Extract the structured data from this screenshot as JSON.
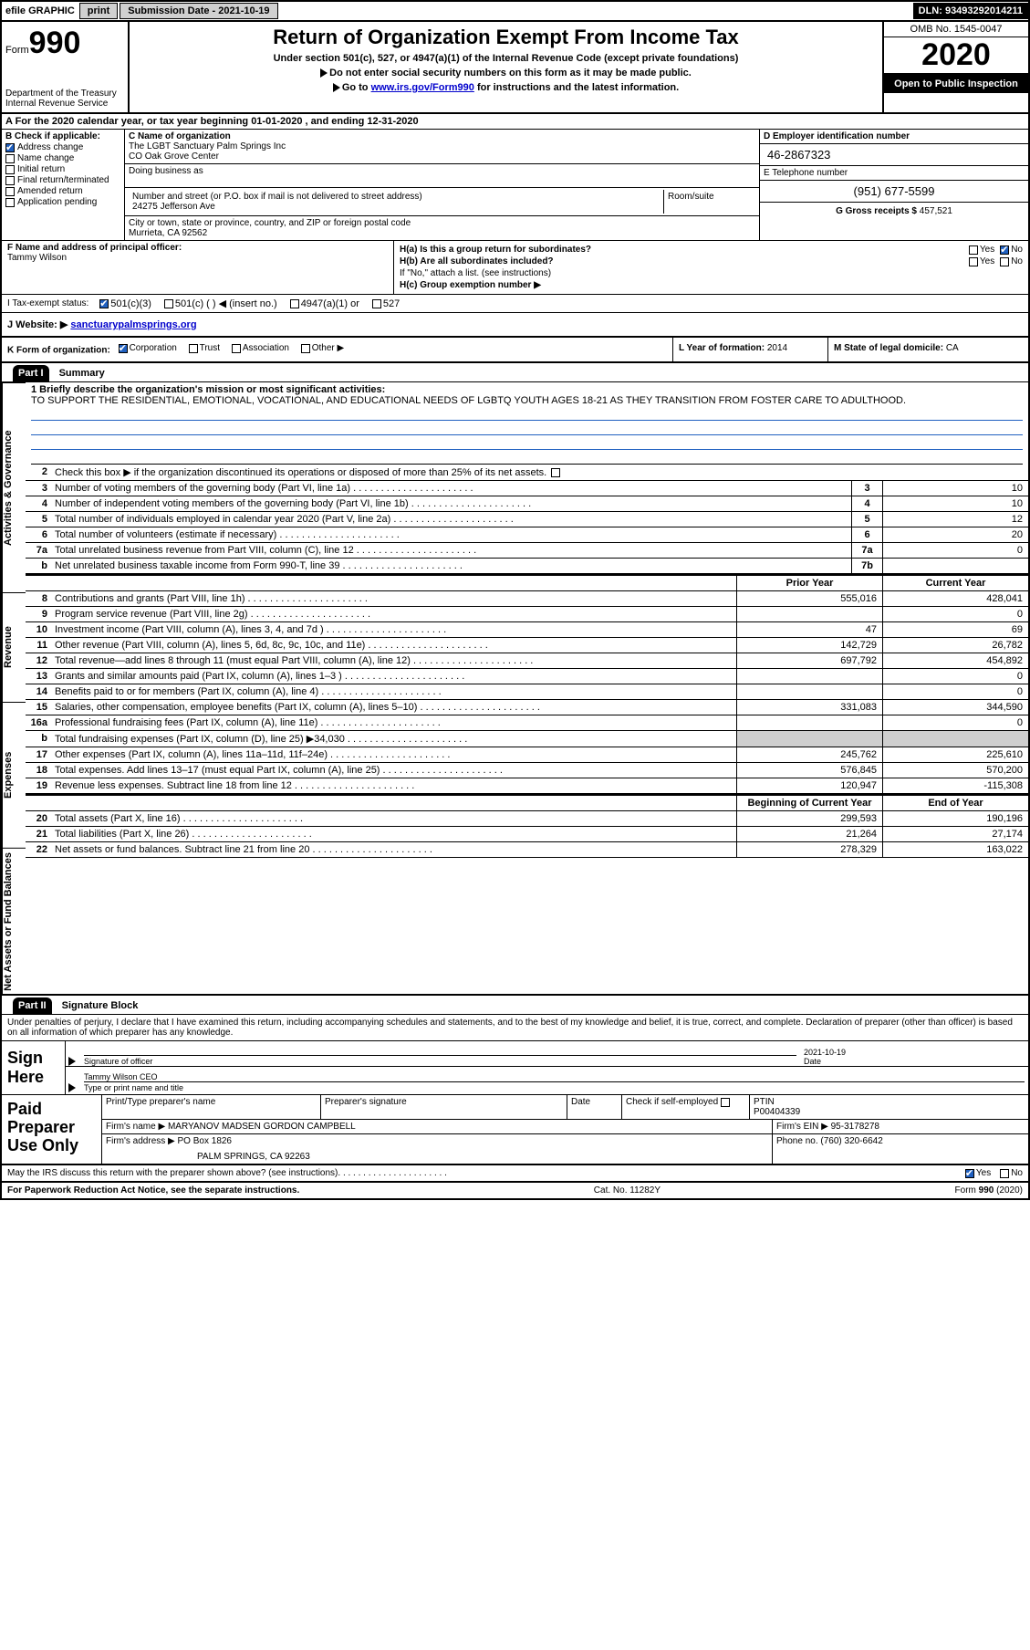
{
  "topbar": {
    "efile": "efile GRAPHIC",
    "print": "print",
    "sub_label": "Submission Date - 2021-10-19",
    "dln": "DLN: 93493292014211"
  },
  "header": {
    "form_label": "Form",
    "form_num": "990",
    "dept": "Department of the Treasury\nInternal Revenue Service",
    "title": "Return of Organization Exempt From Income Tax",
    "sub1": "Under section 501(c), 527, or 4947(a)(1) of the Internal Revenue Code (except private foundations)",
    "sub2": "Do not enter social security numbers on this form as it may be made public.",
    "sub3_pre": "Go to ",
    "sub3_link": "www.irs.gov/Form990",
    "sub3_post": " for instructions and the latest information.",
    "omb": "OMB No. 1545-0047",
    "year": "2020",
    "open": "Open to Public Inspection"
  },
  "period": {
    "a": "A For the 2020 calendar year, or tax year beginning 01-01-2020    , and ending 12-31-2020"
  },
  "block_b": {
    "label": "B Check if applicable:",
    "opts": [
      "Address change",
      "Name change",
      "Initial return",
      "Final return/terminated",
      "Amended return",
      "Application pending"
    ],
    "checked_idx": 0
  },
  "block_c": {
    "name_label": "C Name of organization",
    "name": "The LGBT Sanctuary Palm Springs Inc",
    "co": "CO Oak Grove Center",
    "dba_label": "Doing business as",
    "dba": "",
    "addr_label": "Number and street (or P.O. box if mail is not delivered to street address)",
    "addr": "24275 Jefferson Ave",
    "room_label": "Room/suite",
    "room": "",
    "city_label": "City or town, state or province, country, and ZIP or foreign postal code",
    "city": "Murrieta, CA  92562"
  },
  "block_d": {
    "ein_label": "D Employer identification number",
    "ein": "46-2867323",
    "phone_label": "E Telephone number",
    "phone": "(951) 677-5599",
    "gross_label": "G Gross receipts $",
    "gross": "457,521"
  },
  "officer": {
    "label": "F  Name and address of principal officer:",
    "name": "Tammy Wilson"
  },
  "block_h": {
    "a": "H(a)  Is this a group return for subordinates?",
    "a_yes": "Yes",
    "a_no": "No",
    "b": "H(b)  Are all subordinates included?",
    "b_yes": "Yes",
    "b_no": "No",
    "b_note": "If \"No,\" attach a list. (see instructions)",
    "c": "H(c)  Group exemption number ▶"
  },
  "tax_status": {
    "label": "I   Tax-exempt status:",
    "opts": [
      "501(c)(3)",
      "501(c) (  ) ◀ (insert no.)",
      "4947(a)(1) or",
      "527"
    ],
    "checked_idx": 0
  },
  "website": {
    "label": "J   Website: ▶",
    "url": "sanctuarypalmsprings.org"
  },
  "k_row": {
    "k": "K Form of organization:",
    "opts": [
      "Corporation",
      "Trust",
      "Association",
      "Other ▶"
    ],
    "checked_idx": 0,
    "l_label": "L Year of formation:",
    "l_val": "2014",
    "m_label": "M State of legal domicile:",
    "m_val": "CA"
  },
  "parts": {
    "p1": "Part I",
    "p1_title": "Summary",
    "p2": "Part II",
    "p2_title": "Signature Block"
  },
  "side_labels": [
    "Activities & Governance",
    "Revenue",
    "Expenses",
    "Net Assets or Fund Balances"
  ],
  "summary": {
    "l1_label": "1  Briefly describe the organization's mission or most significant activities:",
    "l1_text": "TO SUPPORT THE RESIDENTIAL, EMOTIONAL, VOCATIONAL, AND EDUCATIONAL NEEDS OF LGBTQ YOUTH AGES 18-21 AS THEY TRANSITION FROM FOSTER CARE TO ADULTHOOD.",
    "l2": "Check this box ▶        if the organization discontinued its operations or disposed of more than 25% of its net assets.",
    "lines_gov": [
      {
        "n": "3",
        "d": "Number of voting members of the governing body (Part VI, line 1a)",
        "box": "3",
        "v": "10"
      },
      {
        "n": "4",
        "d": "Number of independent voting members of the governing body (Part VI, line 1b)",
        "box": "4",
        "v": "10"
      },
      {
        "n": "5",
        "d": "Total number of individuals employed in calendar year 2020 (Part V, line 2a)",
        "box": "5",
        "v": "12"
      },
      {
        "n": "6",
        "d": "Total number of volunteers (estimate if necessary)",
        "box": "6",
        "v": "20"
      },
      {
        "n": "7a",
        "d": "Total unrelated business revenue from Part VIII, column (C), line 12",
        "box": "7a",
        "v": "0"
      },
      {
        "n": "b",
        "d": "Net unrelated business taxable income from Form 990-T, line 39",
        "box": "7b",
        "v": ""
      }
    ],
    "col_hdr_prior": "Prior Year",
    "col_hdr_curr": "Current Year",
    "lines_rev": [
      {
        "n": "8",
        "d": "Contributions and grants (Part VIII, line 1h)",
        "p": "555,016",
        "c": "428,041"
      },
      {
        "n": "9",
        "d": "Program service revenue (Part VIII, line 2g)",
        "p": "",
        "c": "0"
      },
      {
        "n": "10",
        "d": "Investment income (Part VIII, column (A), lines 3, 4, and 7d )",
        "p": "47",
        "c": "69"
      },
      {
        "n": "11",
        "d": "Other revenue (Part VIII, column (A), lines 5, 6d, 8c, 9c, 10c, and 11e)",
        "p": "142,729",
        "c": "26,782"
      },
      {
        "n": "12",
        "d": "Total revenue—add lines 8 through 11 (must equal Part VIII, column (A), line 12)",
        "p": "697,792",
        "c": "454,892"
      }
    ],
    "lines_exp": [
      {
        "n": "13",
        "d": "Grants and similar amounts paid (Part IX, column (A), lines 1–3 )",
        "p": "",
        "c": "0"
      },
      {
        "n": "14",
        "d": "Benefits paid to or for members (Part IX, column (A), line 4)",
        "p": "",
        "c": "0"
      },
      {
        "n": "15",
        "d": "Salaries, other compensation, employee benefits (Part IX, column (A), lines 5–10)",
        "p": "331,083",
        "c": "344,590"
      },
      {
        "n": "16a",
        "d": "Professional fundraising fees (Part IX, column (A), line 11e)",
        "p": "",
        "c": "0"
      },
      {
        "n": "b",
        "d": "Total fundraising expenses (Part IX, column (D), line 25) ▶34,030",
        "p": "shade",
        "c": "shade"
      },
      {
        "n": "17",
        "d": "Other expenses (Part IX, column (A), lines 11a–11d, 11f–24e)",
        "p": "245,762",
        "c": "225,610"
      },
      {
        "n": "18",
        "d": "Total expenses. Add lines 13–17 (must equal Part IX, column (A), line 25)",
        "p": "576,845",
        "c": "570,200"
      },
      {
        "n": "19",
        "d": "Revenue less expenses. Subtract line 18 from line 12",
        "p": "120,947",
        "c": "-115,308"
      }
    ],
    "col_hdr_beg": "Beginning of Current Year",
    "col_hdr_end": "End of Year",
    "lines_net": [
      {
        "n": "20",
        "d": "Total assets (Part X, line 16)",
        "p": "299,593",
        "c": "190,196"
      },
      {
        "n": "21",
        "d": "Total liabilities (Part X, line 26)",
        "p": "21,264",
        "c": "27,174"
      },
      {
        "n": "22",
        "d": "Net assets or fund balances. Subtract line 21 from line 20",
        "p": "278,329",
        "c": "163,022"
      }
    ]
  },
  "sig": {
    "decl": "Under penalties of perjury, I declare that I have examined this return, including accompanying schedules and statements, and to the best of my knowledge and belief, it is true, correct, and complete. Declaration of preparer (other than officer) is based on all information of which preparer has any knowledge.",
    "sign_here": "Sign Here",
    "sig_label": "Signature of officer",
    "date_label": "Date",
    "date_val": "2021-10-19",
    "name_title": "Tammy Wilson CEO",
    "name_title_label": "Type or print name and title"
  },
  "prep": {
    "label": "Paid Preparer Use Only",
    "cols": [
      "Print/Type preparer's name",
      "Preparer's signature",
      "Date"
    ],
    "check_label": "Check        if self-employed",
    "ptin_label": "PTIN",
    "ptin": "P00404339",
    "firm_name_label": "Firm's name    ▶",
    "firm_name": "MARYANOV MADSEN GORDON CAMPBELL",
    "firm_ein_label": "Firm's EIN ▶",
    "firm_ein": "95-3178278",
    "firm_addr_label": "Firm's address ▶",
    "firm_addr1": "PO Box 1826",
    "firm_addr2": "PALM SPRINGS, CA  92263",
    "phone_label": "Phone no.",
    "phone": "(760) 320-6642",
    "discuss": "May the IRS discuss this return with the preparer shown above? (see instructions)",
    "yes": "Yes",
    "no": "No"
  },
  "footer": {
    "left": "For Paperwork Reduction Act Notice, see the separate instructions.",
    "mid": "Cat. No. 11282Y",
    "right": "Form 990 (2020)"
  }
}
